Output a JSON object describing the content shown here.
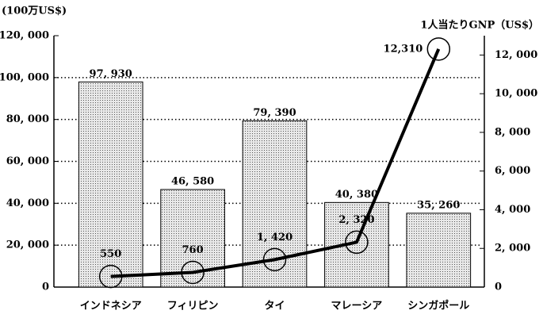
{
  "chart_data": {
    "type": "bar",
    "y_label": "(100万US$)",
    "categories": [
      "インドネシア",
      "フィリピン",
      "タイ",
      "マレーシア",
      "シンガポール"
    ],
    "series": [
      {
        "type": "bar",
        "color": "#d4d4d4",
        "values": [
          97930,
          46580,
          79390,
          40380,
          35260
        ],
        "value_labels": [
          "97, 930",
          "46, 580",
          "79, 390",
          "40, 380",
          "35, 260"
        ]
      },
      {
        "type": "line",
        "name": "1人当たりGNP（US$）",
        "axis": "y2",
        "color": "#000000",
        "values": [
          550,
          760,
          1420,
          2320,
          12310
        ],
        "value_labels": [
          "550",
          "760",
          "1, 420",
          "2, 320",
          "12,310"
        ]
      }
    ],
    "ylim": [
      0,
      120000
    ],
    "yticks": [
      0,
      {
        "value": 20000,
        "label": "20, 000"
      },
      {
        "value": 40000,
        "label": "40, 000"
      },
      {
        "value": 60000,
        "label": "60, 000"
      },
      {
        "value": 80000,
        "label": "80, 000"
      },
      {
        "value": 100000,
        "label": "100, 000"
      },
      {
        "value": 120000,
        "label": "120, 000"
      }
    ],
    "y2lim": [
      0,
      13000
    ],
    "y2ticks": [
      0,
      {
        "value": 2000,
        "label": "2, 000"
      },
      {
        "value": 4000,
        "label": "4, 000"
      },
      {
        "value": 6000,
        "label": "6, 000"
      },
      {
        "value": 8000,
        "label": "8, 000"
      },
      {
        "value": 10000,
        "label": "10, 000"
      },
      {
        "value": 12000,
        "label": "12, 000"
      }
    ],
    "grid": true
  }
}
